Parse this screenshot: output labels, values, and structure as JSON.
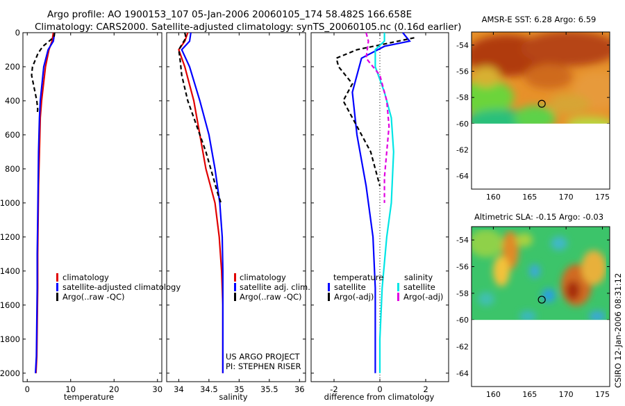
{
  "header": {
    "line1": "Argo profile: AO 1900153_107 05-Jan-2006 20060105_174 58.482S 166.658E",
    "line2": "Climatology: CARS2000. Satellite-adjusted climatology: synTS_20060105.nc (0.16d earlier)"
  },
  "side_note": "CSIRO 12-Jan-2006 08:31:12",
  "credit": [
    "US ARGO PROJECT",
    "PI: STEPHEN RISER"
  ],
  "colors": {
    "climatology": "#e00000",
    "satellite": "#0000ff",
    "argo": "#000000",
    "sal_satellite": "#00e5e5",
    "sal_argo": "#e000e0"
  },
  "chart_data": [
    {
      "type": "line",
      "xlabel": "temperature",
      "ylabel": "",
      "xlim": [
        -1,
        31
      ],
      "ylim": [
        2050,
        0
      ],
      "xticks": [
        0,
        10,
        20,
        30
      ],
      "yticks": [
        0,
        200,
        400,
        600,
        800,
        1000,
        1200,
        1400,
        1600,
        1800,
        2000
      ],
      "legend": [
        "climatology",
        "satellite-adjusted climatology",
        "Argo(..raw -QC)"
      ],
      "series": [
        {
          "name": "climatology",
          "x": [
            6.0,
            5.7,
            5.0,
            4.2,
            3.3,
            3.0,
            2.8,
            2.6,
            2.5,
            2.4,
            2.4,
            2.3,
            2.2,
            2.0
          ],
          "y": [
            0,
            50,
            100,
            200,
            400,
            500,
            700,
            900,
            1100,
            1300,
            1500,
            1700,
            1900,
            2000
          ]
        },
        {
          "name": "satellite-adjusted climatology",
          "x": [
            6.3,
            6.0,
            4.8,
            3.8,
            3.0,
            2.8,
            2.6,
            2.5,
            2.4,
            2.3,
            2.3,
            2.2,
            2.1,
            1.9
          ],
          "y": [
            0,
            50,
            100,
            200,
            400,
            500,
            700,
            900,
            1100,
            1300,
            1500,
            1700,
            1900,
            2000
          ]
        },
        {
          "name": "Argo(..raw -QC)",
          "x": [
            6.3,
            6.2,
            5.5,
            3.6,
            2.5,
            1.2,
            1.0,
            1.4,
            2.2,
            2.4,
            2.3
          ],
          "y": [
            0,
            20,
            40,
            80,
            120,
            200,
            250,
            300,
            400,
            450,
            480
          ]
        }
      ]
    },
    {
      "type": "line",
      "xlabel": "salinity",
      "ylabel": "",
      "xlim": [
        33.8,
        36.1
      ],
      "ylim": [
        2050,
        0
      ],
      "xticks": [
        34,
        34.5,
        35,
        35.5,
        36
      ],
      "legend": [
        "climatology",
        "satellite adj. clim.",
        "Argo(..raw -QC)"
      ],
      "series": [
        {
          "name": "climatology",
          "x": [
            34.15,
            34.1,
            34.0,
            34.1,
            34.25,
            34.35,
            34.45,
            34.6,
            34.67,
            34.71,
            34.73,
            34.73,
            34.73
          ],
          "y": [
            0,
            50,
            100,
            200,
            400,
            600,
            800,
            1000,
            1200,
            1400,
            1600,
            1800,
            2000
          ]
        },
        {
          "name": "satellite adj. clim.",
          "x": [
            34.2,
            34.18,
            34.05,
            34.18,
            34.35,
            34.5,
            34.6,
            34.68,
            34.72,
            34.73,
            34.73,
            34.73,
            34.73
          ],
          "y": [
            0,
            50,
            100,
            200,
            400,
            600,
            800,
            1000,
            1200,
            1400,
            1600,
            1800,
            2000
          ]
        },
        {
          "name": "Argo(..raw -QC)",
          "x": [
            34.1,
            34.12,
            34.0,
            34.02,
            34.05,
            34.15,
            34.3,
            34.45,
            34.57,
            34.65,
            34.7
          ],
          "y": [
            0,
            30,
            100,
            150,
            250,
            400,
            550,
            700,
            850,
            950,
            1000
          ]
        }
      ]
    },
    {
      "type": "line",
      "xlabel": "difference from climatology",
      "ylabel": "",
      "xlim": [
        -3,
        3
      ],
      "ylim": [
        2050,
        0
      ],
      "xticks": [
        -2,
        0,
        2
      ],
      "legend_groups": [
        "temperature",
        "salinity"
      ],
      "legend": [
        "satellite",
        "Argo(-adj)",
        "satellite",
        "Argo(-adj)"
      ],
      "series": [
        {
          "name": "temperature satellite",
          "x": [
            1.0,
            1.3,
            0.2,
            -0.8,
            -1.2,
            -1.0,
            -0.6,
            -0.3,
            -0.2,
            -0.2,
            -0.2
          ],
          "y": [
            0,
            50,
            80,
            150,
            350,
            600,
            900,
            1200,
            1500,
            1800,
            2000
          ]
        },
        {
          "name": "temperature Argo(-adj)",
          "x": [
            1.5,
            0.8,
            -1.0,
            -1.9,
            -1.8,
            -1.2,
            -1.6,
            -1.2,
            -0.8,
            -0.4,
            -0.2,
            0.0
          ],
          "y": [
            30,
            50,
            100,
            150,
            200,
            300,
            400,
            500,
            600,
            700,
            800,
            900
          ]
        },
        {
          "name": "salinity satellite",
          "x": [
            0.2,
            0.2,
            -0.2,
            -0.2,
            0.2,
            0.5,
            0.6,
            0.5,
            0.3,
            0.1,
            0.0,
            0.0
          ],
          "y": [
            0,
            50,
            100,
            200,
            350,
            500,
            700,
            1000,
            1200,
            1500,
            1800,
            2000
          ]
        },
        {
          "name": "salinity Argo(-adj)",
          "x": [
            -0.6,
            -0.5,
            -0.6,
            0.0,
            0.3,
            0.4,
            0.3,
            0.2,
            0.2
          ],
          "y": [
            0,
            50,
            150,
            250,
            400,
            550,
            700,
            850,
            1000
          ]
        }
      ]
    },
    {
      "type": "heatmap",
      "title": "AMSR-E SST: 6.28 Argo: 6.59",
      "xlim": [
        157,
        176
      ],
      "ylim": [
        -65,
        -53
      ],
      "xticks": [
        160,
        165,
        170,
        175
      ],
      "yticks": [
        -54,
        -56,
        -58,
        -60,
        -62,
        -64
      ],
      "data_extent_ylim": [
        -60,
        -53
      ],
      "marker": {
        "x": 166.658,
        "y": -58.482
      }
    },
    {
      "type": "heatmap",
      "title": "Altimetric SLA: -0.15 Argo: -0.03",
      "xlim": [
        157,
        176
      ],
      "ylim": [
        -65,
        -53
      ],
      "xticks": [
        160,
        165,
        170,
        175
      ],
      "yticks": [
        -54,
        -56,
        -58,
        -60,
        -62,
        -64
      ],
      "data_extent_ylim": [
        -60,
        -53
      ],
      "marker": {
        "x": 166.658,
        "y": -58.482
      }
    }
  ]
}
